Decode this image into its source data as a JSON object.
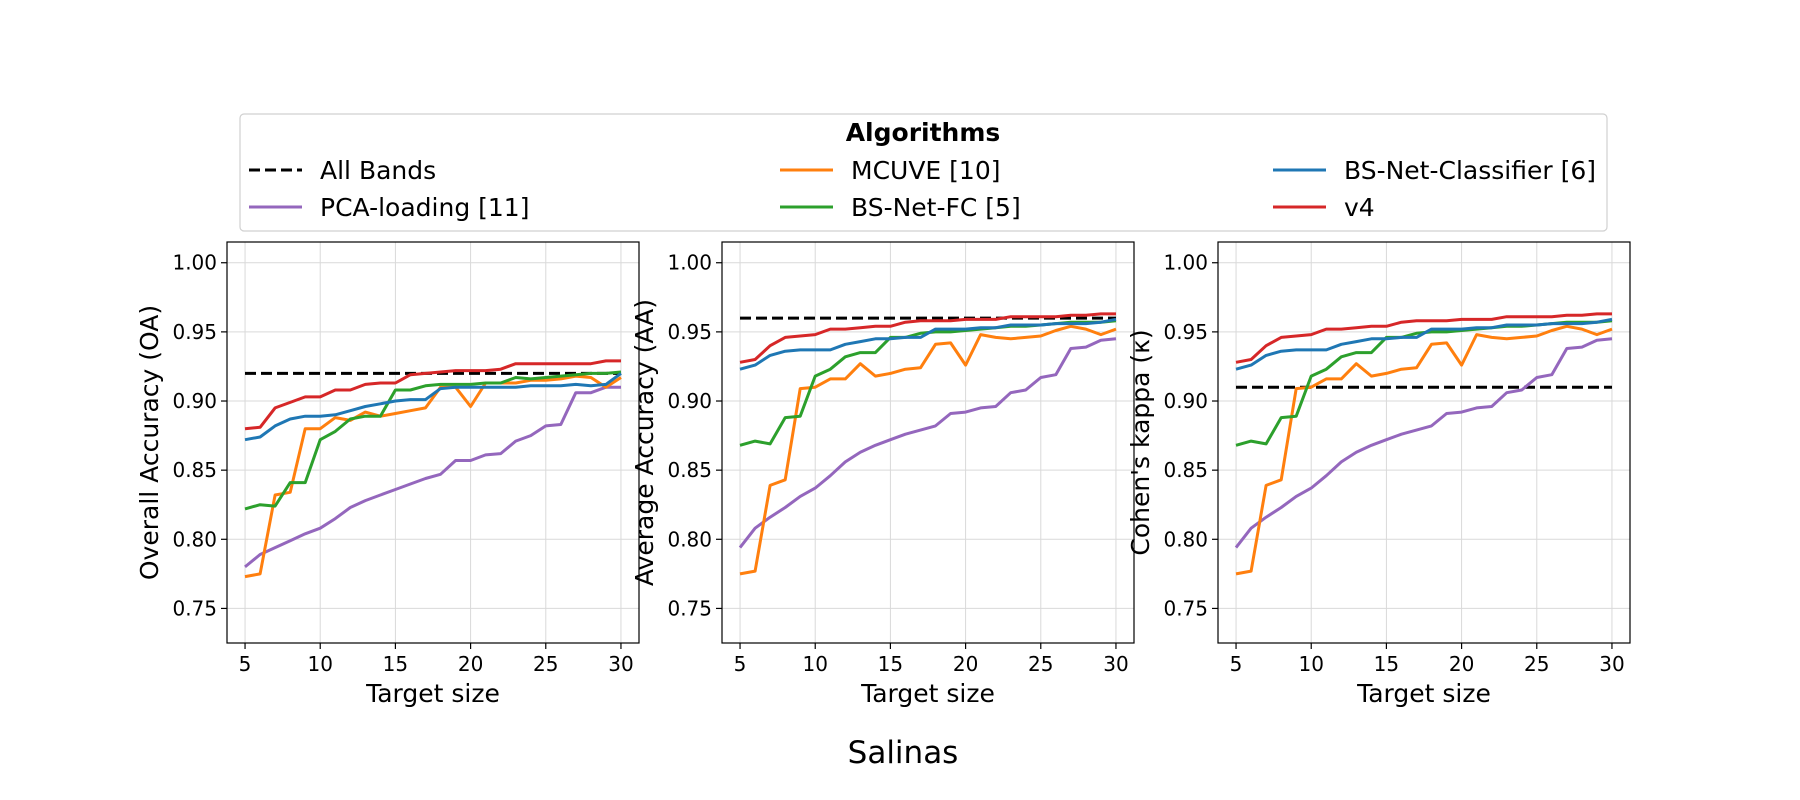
{
  "figure": {
    "suptitle": "Salinas",
    "legend_title": "Algorithms"
  },
  "colors": {
    "All Bands": "#000000",
    "PCA-loading [11]": "#9467bd",
    "MCUVE [10]": "#ff7f0e",
    "BS-Net-FC [5]": "#2ca02c",
    "BS-Net-Classifier [6]": "#1f77b4",
    "v4": "#d62728"
  },
  "legend": [
    {
      "name": "All Bands",
      "style": "dashed"
    },
    {
      "name": "PCA-loading [11]",
      "style": "solid"
    },
    {
      "name": "MCUVE [10]",
      "style": "solid"
    },
    {
      "name": "BS-Net-FC [5]",
      "style": "solid"
    },
    {
      "name": "BS-Net-Classifier [6]",
      "style": "solid"
    },
    {
      "name": "v4",
      "style": "solid"
    }
  ],
  "chart_data": [
    {
      "type": "line",
      "xlabel": "Target size",
      "ylabel": "Overall Accuracy (OA)",
      "xlim": [
        3.8,
        31.2
      ],
      "ylim": [
        0.725,
        1.015
      ],
      "xticks": [
        5,
        10,
        15,
        20,
        25,
        30
      ],
      "yticks": [
        "0.75",
        "0.80",
        "0.85",
        "0.90",
        "0.95",
        "1.00"
      ],
      "grid": true,
      "x": [
        5,
        6,
        7,
        8,
        9,
        10,
        11,
        12,
        13,
        14,
        15,
        16,
        17,
        18,
        19,
        20,
        21,
        22,
        23,
        24,
        25,
        26,
        27,
        28,
        29,
        30
      ],
      "series": [
        {
          "name": "All Bands",
          "values": [
            0.92,
            0.92,
            0.92,
            0.92,
            0.92,
            0.92,
            0.92,
            0.92,
            0.92,
            0.92,
            0.92,
            0.92,
            0.92,
            0.92,
            0.92,
            0.92,
            0.92,
            0.92,
            0.92,
            0.92,
            0.92,
            0.92,
            0.92,
            0.92,
            0.92,
            0.92
          ]
        },
        {
          "name": "PCA-loading [11]",
          "values": [
            0.78,
            0.789,
            0.794,
            0.799,
            0.804,
            0.808,
            0.815,
            0.823,
            0.828,
            0.832,
            0.836,
            0.84,
            0.844,
            0.847,
            0.857,
            0.857,
            0.861,
            0.862,
            0.871,
            0.875,
            0.882,
            0.883,
            0.906,
            0.906,
            0.91,
            0.91
          ]
        },
        {
          "name": "MCUVE [10]",
          "values": [
            0.773,
            0.775,
            0.832,
            0.834,
            0.88,
            0.88,
            0.888,
            0.886,
            0.892,
            0.889,
            0.891,
            0.893,
            0.895,
            0.91,
            0.91,
            0.896,
            0.913,
            0.913,
            0.913,
            0.915,
            0.915,
            0.916,
            0.918,
            0.917,
            0.91,
            0.917
          ]
        },
        {
          "name": "BS-Net-FC [5]",
          "values": [
            0.822,
            0.825,
            0.824,
            0.841,
            0.841,
            0.872,
            0.878,
            0.887,
            0.889,
            0.889,
            0.908,
            0.908,
            0.911,
            0.912,
            0.912,
            0.912,
            0.913,
            0.913,
            0.917,
            0.916,
            0.917,
            0.918,
            0.919,
            0.92,
            0.92,
            0.921
          ]
        },
        {
          "name": "BS-Net-Classifier [6]",
          "values": [
            0.872,
            0.874,
            0.882,
            0.887,
            0.889,
            0.889,
            0.89,
            0.893,
            0.896,
            0.898,
            0.9,
            0.901,
            0.901,
            0.909,
            0.91,
            0.91,
            0.91,
            0.91,
            0.91,
            0.911,
            0.911,
            0.911,
            0.912,
            0.911,
            0.912,
            0.92
          ]
        },
        {
          "name": "v4",
          "values": [
            0.88,
            0.881,
            0.895,
            0.899,
            0.903,
            0.903,
            0.908,
            0.908,
            0.912,
            0.913,
            0.913,
            0.919,
            0.92,
            0.921,
            0.922,
            0.922,
            0.922,
            0.923,
            0.927,
            0.927,
            0.927,
            0.927,
            0.927,
            0.927,
            0.929,
            0.929
          ]
        }
      ]
    },
    {
      "type": "line",
      "xlabel": "Target size",
      "ylabel": "Average Accuracy (AA)",
      "xlim": [
        3.8,
        31.2
      ],
      "ylim": [
        0.725,
        1.015
      ],
      "xticks": [
        5,
        10,
        15,
        20,
        25,
        30
      ],
      "yticks": [
        "0.75",
        "0.80",
        "0.85",
        "0.90",
        "0.95",
        "1.00"
      ],
      "grid": true,
      "x": [
        5,
        6,
        7,
        8,
        9,
        10,
        11,
        12,
        13,
        14,
        15,
        16,
        17,
        18,
        19,
        20,
        21,
        22,
        23,
        24,
        25,
        26,
        27,
        28,
        29,
        30
      ],
      "series": [
        {
          "name": "All Bands",
          "values": [
            0.96,
            0.96,
            0.96,
            0.96,
            0.96,
            0.96,
            0.96,
            0.96,
            0.96,
            0.96,
            0.96,
            0.96,
            0.96,
            0.96,
            0.96,
            0.96,
            0.96,
            0.96,
            0.96,
            0.96,
            0.96,
            0.96,
            0.96,
            0.96,
            0.96,
            0.96
          ]
        },
        {
          "name": "PCA-loading [11]",
          "values": [
            0.794,
            0.808,
            0.816,
            0.823,
            0.831,
            0.837,
            0.846,
            0.856,
            0.863,
            0.868,
            0.872,
            0.876,
            0.879,
            0.882,
            0.891,
            0.892,
            0.895,
            0.896,
            0.906,
            0.908,
            0.917,
            0.919,
            0.938,
            0.939,
            0.944,
            0.945
          ]
        },
        {
          "name": "MCUVE [10]",
          "values": [
            0.775,
            0.777,
            0.839,
            0.843,
            0.909,
            0.91,
            0.916,
            0.916,
            0.927,
            0.918,
            0.92,
            0.923,
            0.924,
            0.941,
            0.942,
            0.926,
            0.948,
            0.946,
            0.945,
            0.946,
            0.947,
            0.951,
            0.954,
            0.952,
            0.948,
            0.952
          ]
        },
        {
          "name": "BS-Net-FC [5]",
          "values": [
            0.868,
            0.871,
            0.869,
            0.888,
            0.889,
            0.918,
            0.923,
            0.932,
            0.935,
            0.935,
            0.946,
            0.946,
            0.949,
            0.95,
            0.95,
            0.951,
            0.952,
            0.953,
            0.954,
            0.954,
            0.955,
            0.956,
            0.957,
            0.957,
            0.957,
            0.958
          ]
        },
        {
          "name": "BS-Net-Classifier [6]",
          "values": [
            0.923,
            0.926,
            0.933,
            0.936,
            0.937,
            0.937,
            0.937,
            0.941,
            0.943,
            0.945,
            0.945,
            0.946,
            0.946,
            0.952,
            0.952,
            0.952,
            0.953,
            0.953,
            0.955,
            0.955,
            0.955,
            0.956,
            0.956,
            0.956,
            0.957,
            0.959
          ]
        },
        {
          "name": "v4",
          "values": [
            0.928,
            0.93,
            0.94,
            0.946,
            0.947,
            0.948,
            0.952,
            0.952,
            0.953,
            0.954,
            0.954,
            0.957,
            0.958,
            0.958,
            0.958,
            0.959,
            0.959,
            0.959,
            0.961,
            0.961,
            0.961,
            0.961,
            0.962,
            0.962,
            0.963,
            0.963
          ]
        }
      ]
    },
    {
      "type": "line",
      "xlabel": "Target size",
      "ylabel": "Cohen's kappa (κ)",
      "xlim": [
        3.8,
        31.2
      ],
      "ylim": [
        0.725,
        1.015
      ],
      "xticks": [
        5,
        10,
        15,
        20,
        25,
        30
      ],
      "yticks": [
        "0.75",
        "0.80",
        "0.85",
        "0.90",
        "0.95",
        "1.00"
      ],
      "grid": true,
      "x": [
        5,
        6,
        7,
        8,
        9,
        10,
        11,
        12,
        13,
        14,
        15,
        16,
        17,
        18,
        19,
        20,
        21,
        22,
        23,
        24,
        25,
        26,
        27,
        28,
        29,
        30
      ],
      "series": [
        {
          "name": "All Bands",
          "values": [
            0.91,
            0.91,
            0.91,
            0.91,
            0.91,
            0.91,
            0.91,
            0.91,
            0.91,
            0.91,
            0.91,
            0.91,
            0.91,
            0.91,
            0.91,
            0.91,
            0.91,
            0.91,
            0.91,
            0.91,
            0.91,
            0.91,
            0.91,
            0.91,
            0.91,
            0.91
          ]
        },
        {
          "name": "PCA-loading [11]",
          "values": [
            0.794,
            0.808,
            0.816,
            0.823,
            0.831,
            0.837,
            0.846,
            0.856,
            0.863,
            0.868,
            0.872,
            0.876,
            0.879,
            0.882,
            0.891,
            0.892,
            0.895,
            0.896,
            0.906,
            0.908,
            0.917,
            0.919,
            0.938,
            0.939,
            0.944,
            0.945
          ]
        },
        {
          "name": "MCUVE [10]",
          "values": [
            0.775,
            0.777,
            0.839,
            0.843,
            0.909,
            0.91,
            0.916,
            0.916,
            0.927,
            0.918,
            0.92,
            0.923,
            0.924,
            0.941,
            0.942,
            0.926,
            0.948,
            0.946,
            0.945,
            0.946,
            0.947,
            0.951,
            0.954,
            0.952,
            0.948,
            0.952
          ]
        },
        {
          "name": "BS-Net-FC [5]",
          "values": [
            0.868,
            0.871,
            0.869,
            0.888,
            0.889,
            0.918,
            0.923,
            0.932,
            0.935,
            0.935,
            0.946,
            0.946,
            0.949,
            0.95,
            0.95,
            0.951,
            0.952,
            0.953,
            0.954,
            0.954,
            0.955,
            0.956,
            0.957,
            0.957,
            0.957,
            0.958
          ]
        },
        {
          "name": "BS-Net-Classifier [6]",
          "values": [
            0.923,
            0.926,
            0.933,
            0.936,
            0.937,
            0.937,
            0.937,
            0.941,
            0.943,
            0.945,
            0.945,
            0.946,
            0.946,
            0.952,
            0.952,
            0.952,
            0.953,
            0.953,
            0.955,
            0.955,
            0.955,
            0.956,
            0.956,
            0.956,
            0.957,
            0.959
          ]
        },
        {
          "name": "v4",
          "values": [
            0.928,
            0.93,
            0.94,
            0.946,
            0.947,
            0.948,
            0.952,
            0.952,
            0.953,
            0.954,
            0.954,
            0.957,
            0.958,
            0.958,
            0.958,
            0.959,
            0.959,
            0.959,
            0.961,
            0.961,
            0.961,
            0.961,
            0.962,
            0.962,
            0.963,
            0.963
          ]
        }
      ]
    }
  ]
}
